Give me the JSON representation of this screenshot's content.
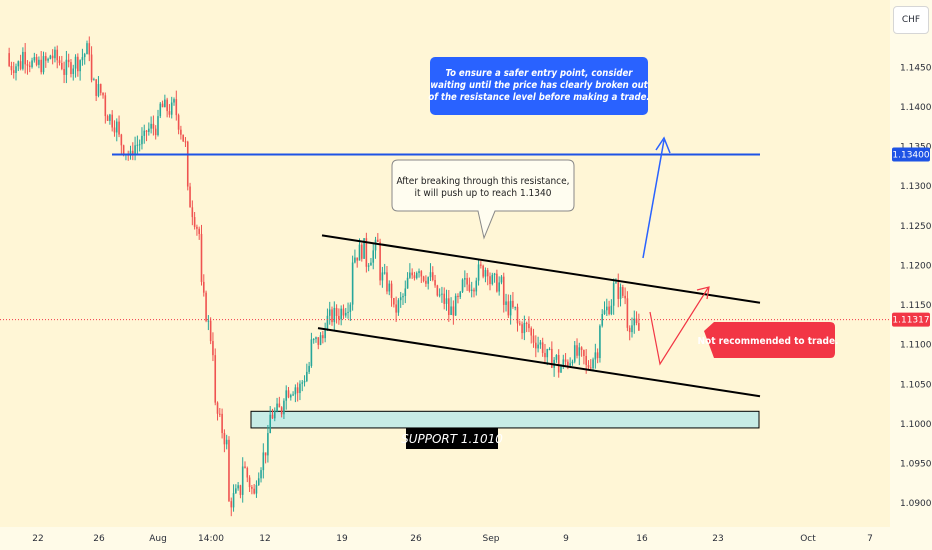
{
  "currency_button": "CHF",
  "colors": {
    "background": "#fff6d6",
    "up_candle": "#26a69a",
    "down_candle": "#ef5350",
    "resistance_line": "#1e53e5",
    "channel_line": "#000000",
    "support_zone": "#c7ece6",
    "blue_note_bg": "#2962ff",
    "red_note_bg": "#f23645",
    "current_price_tag": "#f23645",
    "resistance_price_tag": "#1e53e5"
  },
  "chart_data": {
    "type": "candlestick",
    "y_range": [
      1.087,
      1.1535
    ],
    "y_ticks": [
      "1.09000",
      "1.09500",
      "1.10000",
      "1.10500",
      "1.11000",
      "1.11500",
      "1.12000",
      "1.12500",
      "1.13000",
      "1.13500",
      "1.14000",
      "1.14500"
    ],
    "x_tick_labels": [
      "22",
      "26",
      "Aug",
      "14:00",
      "12",
      "19",
      "26",
      "Sep",
      "9",
      "16",
      "23",
      "Oct",
      "7"
    ],
    "resistance_level": 1.134,
    "resistance_price_label": "1.13400",
    "current_price": 1.11317,
    "current_price_label": "1.11317",
    "support_label": "SUPPORT 1.1010",
    "support_zone": [
      1.0995,
      1.1016
    ],
    "channel_upper": {
      "from": 1.1238,
      "to": 1.1153
    },
    "channel_lower": {
      "from": 1.1121,
      "to": 1.1035
    },
    "annotations": {
      "blue_note": "To ensure a safer entry point, consider waiting until the price has clearly broken out of the resistance level before making a trade.",
      "speech_bubble": "After breaking through this resistance, it will push up to reach 1.1340",
      "red_note": "Not recommended to trade."
    },
    "path_anchors": [
      [
        1.1468,
        1.1452
      ],
      [
        1.1455,
        1.1468
      ],
      [
        1.1448,
        1.1452
      ],
      [
        1.1458,
        1.1466
      ],
      [
        1.1452,
        1.1446
      ],
      [
        1.146,
        1.1457
      ],
      [
        1.1478,
        1.143
      ],
      [
        1.1412,
        1.1395
      ],
      [
        1.1372,
        1.136
      ],
      [
        1.133,
        1.135
      ],
      [
        1.136,
        1.137
      ],
      [
        1.1378,
        1.14
      ],
      [
        1.1395,
        1.1402
      ],
      [
        1.134,
        1.129
      ],
      [
        1.123,
        1.117
      ],
      [
        1.108,
        1.102
      ],
      [
        1.0965,
        1.09
      ],
      [
        1.092,
        1.095
      ],
      [
        1.09,
        1.0935
      ],
      [
        1.0985,
        1.101
      ],
      [
        1.102,
        1.104
      ],
      [
        1.105,
        1.104
      ],
      [
        1.108,
        1.11
      ],
      [
        1.111,
        1.113
      ],
      [
        1.114,
        1.114
      ],
      [
        1.116,
        1.121
      ],
      [
        1.1225,
        1.1205
      ],
      [
        1.123,
        1.119
      ],
      [
        1.116,
        1.114
      ],
      [
        1.117,
        1.118
      ],
      [
        1.1205,
        1.119
      ],
      [
        1.118,
        1.1165
      ],
      [
        1.115,
        1.114
      ],
      [
        1.116,
        1.1175
      ],
      [
        1.118,
        1.119
      ],
      [
        1.12,
        1.118
      ],
      [
        1.1175,
        1.115
      ],
      [
        1.114,
        1.1125
      ],
      [
        1.112,
        1.111
      ],
      [
        1.1095,
        1.1085
      ],
      [
        1.108,
        1.107
      ],
      [
        1.1085,
        1.109
      ],
      [
        1.108,
        1.107
      ],
      [
        1.11,
        1.113
      ],
      [
        1.116,
        1.1172
      ],
      [
        1.1158,
        1.113
      ],
      [
        1.1115,
        1.1132
      ]
    ]
  }
}
